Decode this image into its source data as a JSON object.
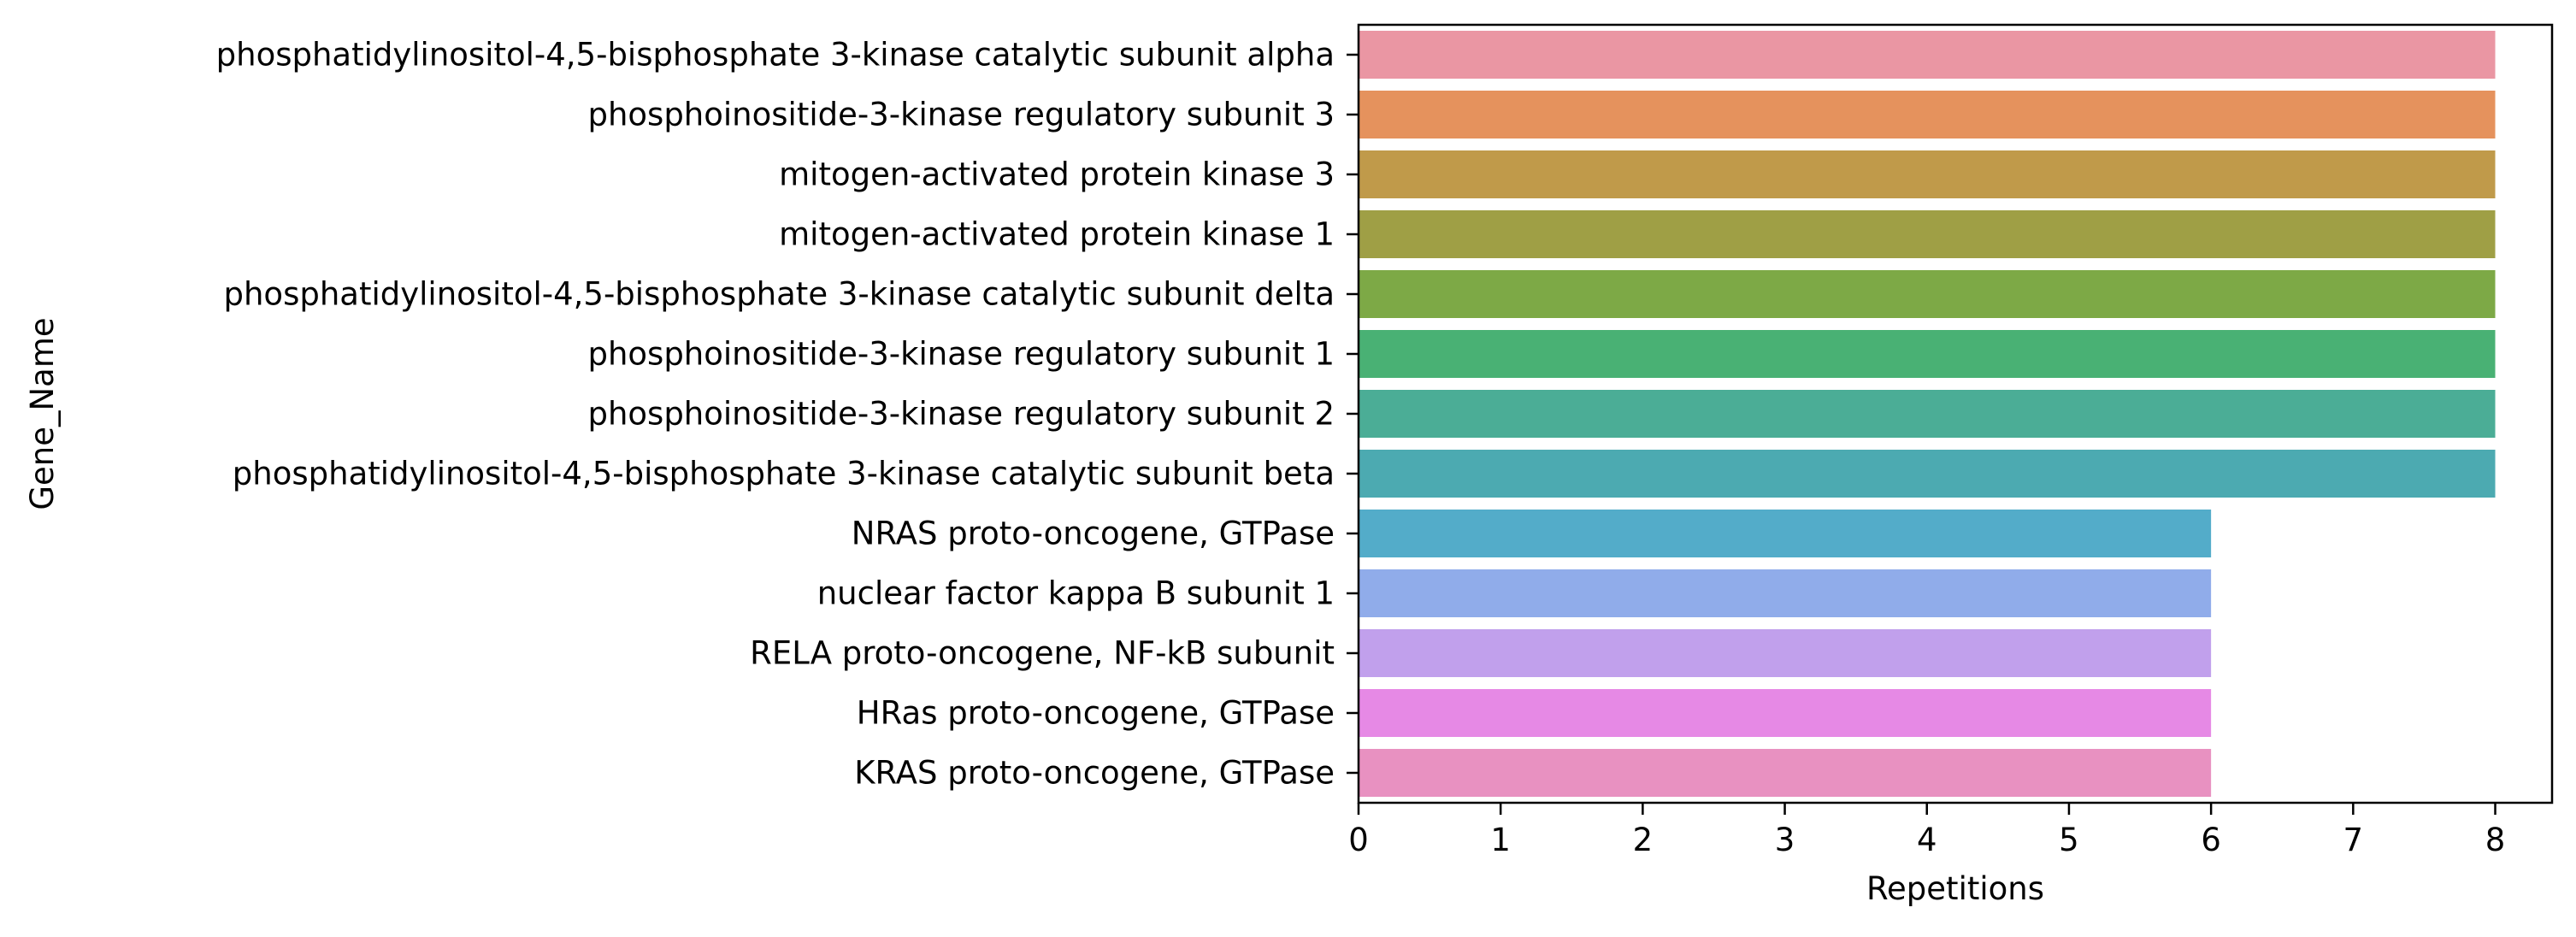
{
  "chart_data": {
    "type": "bar",
    "orientation": "horizontal",
    "xlabel": "Repetitions",
    "ylabel": "Gene_Name",
    "xlim": [
      0,
      8.4
    ],
    "xticks": [
      0,
      1,
      2,
      3,
      4,
      5,
      6,
      7,
      8
    ],
    "grid": false,
    "categories": [
      "phosphatidylinositol-4,5-bisphosphate 3-kinase catalytic subunit alpha",
      "phosphoinositide-3-kinase regulatory subunit 3",
      "mitogen-activated protein kinase 3",
      "mitogen-activated protein kinase 1",
      "phosphatidylinositol-4,5-bisphosphate 3-kinase catalytic subunit delta",
      "phosphoinositide-3-kinase regulatory subunit 1",
      "phosphoinositide-3-kinase regulatory subunit 2",
      "phosphatidylinositol-4,5-bisphosphate 3-kinase catalytic subunit beta",
      "NRAS proto-oncogene, GTPase",
      "nuclear factor kappa B subunit 1",
      "RELA proto-oncogene, NF-kB subunit",
      "HRas proto-oncogene, GTPase",
      "KRAS proto-oncogene, GTPase"
    ],
    "values": [
      8,
      8,
      8,
      8,
      8,
      8,
      8,
      8,
      6,
      6,
      6,
      6,
      6
    ],
    "colors": [
      "#ea96a3",
      "#e5925d",
      "#c09a4a",
      "#9f9f45",
      "#7da946",
      "#49b174",
      "#4bad96",
      "#4caab1",
      "#53acc9",
      "#90acea",
      "#c1a0ec",
      "#e689e5",
      "#e891c1"
    ]
  }
}
